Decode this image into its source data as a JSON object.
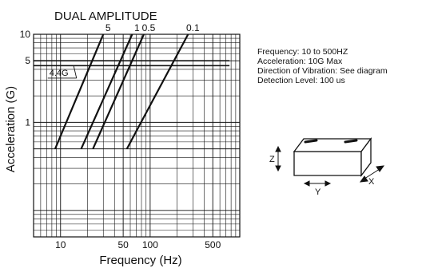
{
  "chart_data": {
    "type": "line",
    "title": "DUAL AMPLITUDE",
    "xlabel": "Frequency (Hz)",
    "ylabel": "Acceleration (G)",
    "x_scale": "log",
    "y_scale": "log",
    "xlim": [
      5,
      1000
    ],
    "ylim": [
      0.05,
      10
    ],
    "x_ticks": [
      {
        "value": 10,
        "label": "10"
      },
      {
        "value": 50,
        "label": "50"
      },
      {
        "value": 100,
        "label": "100"
      },
      {
        "value": 500,
        "label": "500"
      }
    ],
    "y_ticks": [
      {
        "value": 1,
        "label": "1"
      },
      {
        "value": 5,
        "label": "5"
      },
      {
        "value": 10,
        "label": "10"
      }
    ],
    "grid": true,
    "series": [
      {
        "name": "5",
        "points": [
          [
            8.7,
            0.5
          ],
          [
            30,
            10
          ]
        ]
      },
      {
        "name": "1",
        "points": [
          [
            17,
            0.5
          ],
          [
            63,
            10
          ]
        ]
      },
      {
        "name": "0.5",
        "points": [
          [
            23,
            0.5
          ],
          [
            85,
            10
          ]
        ]
      },
      {
        "name": "0.1",
        "points": [
          [
            55,
            0.5
          ],
          [
            265,
            10
          ]
        ]
      }
    ],
    "reference_lines": [
      {
        "label": "",
        "y": 5.0,
        "x_range": [
          5,
          800
        ]
      },
      {
        "label": "",
        "y": 4.4,
        "x_range": [
          5,
          800
        ]
      }
    ],
    "annotations": [
      {
        "text": "4.4G",
        "x": 10,
        "y": 3.6
      }
    ]
  },
  "specs": [
    "Frequency: 10 to 500HZ",
    "Acceleration: 10G Max",
    "Direction of Vibration: See diagram",
    "Detection Level: 100 us"
  ],
  "diagram": {
    "axes": [
      "Z",
      "Y",
      "X"
    ],
    "colors": {
      "line": "#111111",
      "background": "#ffffff"
    }
  }
}
